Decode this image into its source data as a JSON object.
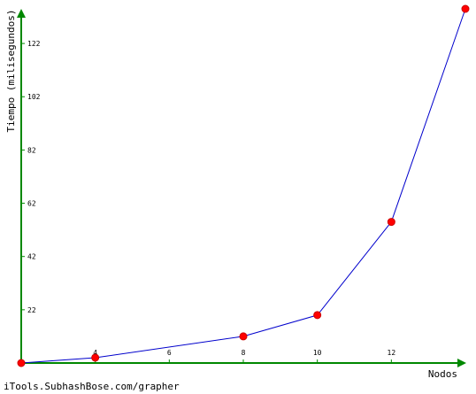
{
  "chart_data": {
    "type": "line",
    "xlabel": "Nodos",
    "ylabel": "Tiempo (milisegundos)",
    "x_ticks": [
      4,
      6,
      8,
      10,
      12
    ],
    "y_ticks": [
      22,
      42,
      62,
      82,
      102,
      122
    ],
    "xlim": [
      2,
      14.0
    ],
    "ylim": [
      2,
      135
    ],
    "series": [
      {
        "x": [
          2,
          4,
          8,
          10,
          12,
          14
        ],
        "y": [
          2,
          4,
          12,
          20,
          55,
          135
        ]
      }
    ],
    "colors": {
      "axis": "#008800",
      "line": "#0000cc",
      "marker": "#ff0000",
      "marker_stroke": "#cc0000"
    }
  },
  "footer": {
    "credit": "iTools.SubhashBose.com/grapher"
  }
}
